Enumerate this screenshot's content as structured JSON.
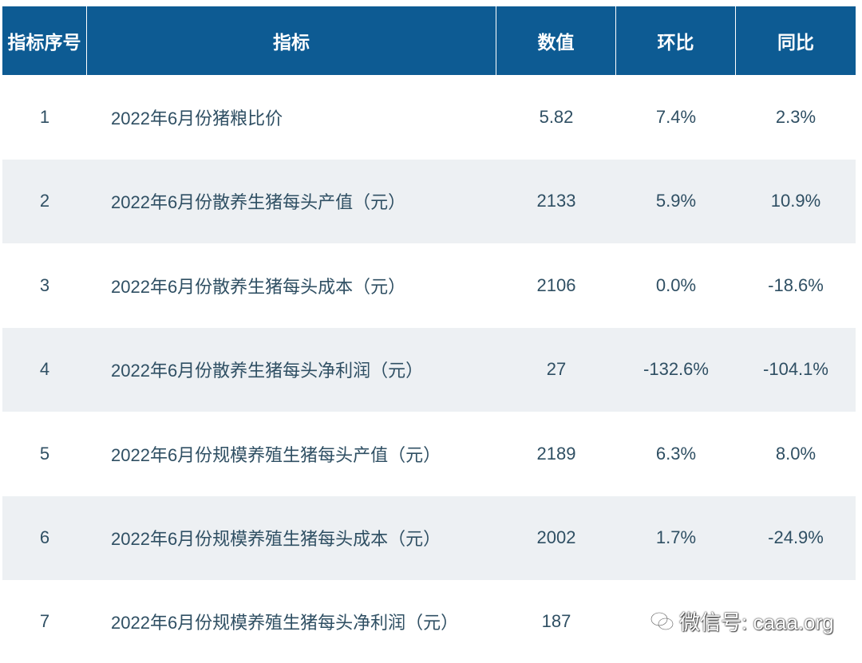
{
  "table": {
    "headers": [
      "指标序号",
      "指标",
      "数值",
      "环比",
      "同比"
    ],
    "rows": [
      {
        "index": "1",
        "name": "2022年6月份猪粮比价",
        "value": "5.82",
        "mom": "7.4%",
        "yoy": "2.3%"
      },
      {
        "index": "2",
        "name": "2022年6月份散养生猪每头产值（元）",
        "value": "2133",
        "mom": "5.9%",
        "yoy": "10.9%"
      },
      {
        "index": "3",
        "name": "2022年6月份散养生猪每头成本（元）",
        "value": "2106",
        "mom": "0.0%",
        "yoy": "-18.6%"
      },
      {
        "index": "4",
        "name": "2022年6月份散养生猪每头净利润（元）",
        "value": "27",
        "mom": "-132.6%",
        "yoy": "-104.1%"
      },
      {
        "index": "5",
        "name": "2022年6月份规模养殖生猪每头产值（元）",
        "value": "2189",
        "mom": "6.3%",
        "yoy": "8.0%"
      },
      {
        "index": "6",
        "name": "2022年6月份规模养殖生猪每头成本（元）",
        "value": "2002",
        "mom": "1.7%",
        "yoy": "-24.9%"
      },
      {
        "index": "7",
        "name": "2022年6月份规模养殖生猪每头净利润（元）",
        "value": "187",
        "mom": "",
        "yoy": ""
      }
    ]
  },
  "watermark": {
    "text": "微信号: caaa.org",
    "icon": "wechat-icon"
  },
  "colors": {
    "header_bg": "#0d5b93",
    "alt_row_bg": "#edf0f3",
    "text": "#2f4f63"
  }
}
